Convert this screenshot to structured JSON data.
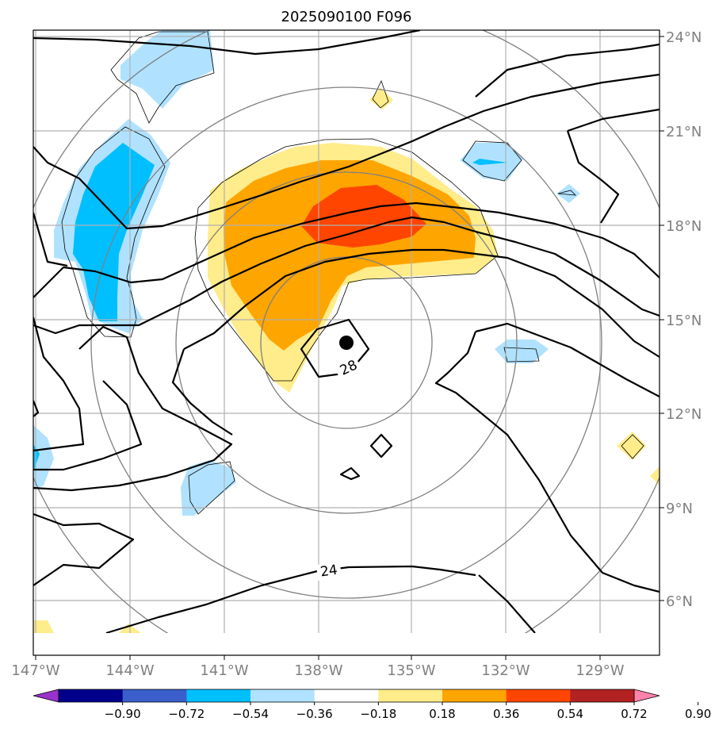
{
  "chart_data": {
    "type": "contour-map",
    "title": "2025090100 F096",
    "lon_ticks": [
      "147°W",
      "144°W",
      "141°W",
      "138°W",
      "135°W",
      "132°W",
      "129°W"
    ],
    "lat_ticks": [
      "24°N",
      "21°N",
      "18°N",
      "15°N",
      "12°N",
      "9°N",
      "6°N"
    ],
    "lon_range": [
      -147.0,
      -127.0
    ],
    "lat_range": [
      4.0,
      24.2
    ],
    "contour_labels": [
      "28",
      "24"
    ],
    "center_marker": {
      "lon": -137.1,
      "lat": 14.3
    },
    "colorbar": {
      "ticks": [
        "−0.90",
        "−0.72",
        "−0.54",
        "−0.36",
        "−0.18",
        "0.18",
        "0.36",
        "0.54",
        "0.72",
        "0.90"
      ],
      "colors": [
        "#9932CC",
        "#00008B",
        "#3A5FCD",
        "#00BFFF",
        "#B0E2FF",
        "#FFFFFF",
        "#FFEC8B",
        "#FFA500",
        "#FF4500",
        "#B22222",
        "#FF82AB"
      ],
      "extend": "both"
    },
    "shading_levels": {
      "lightblue": "#B0E2FF",
      "deepskyblue": "#00BFFF",
      "lightyellow": "#FFEC8B",
      "orange": "#FFA500",
      "orangered": "#FF4500"
    }
  }
}
